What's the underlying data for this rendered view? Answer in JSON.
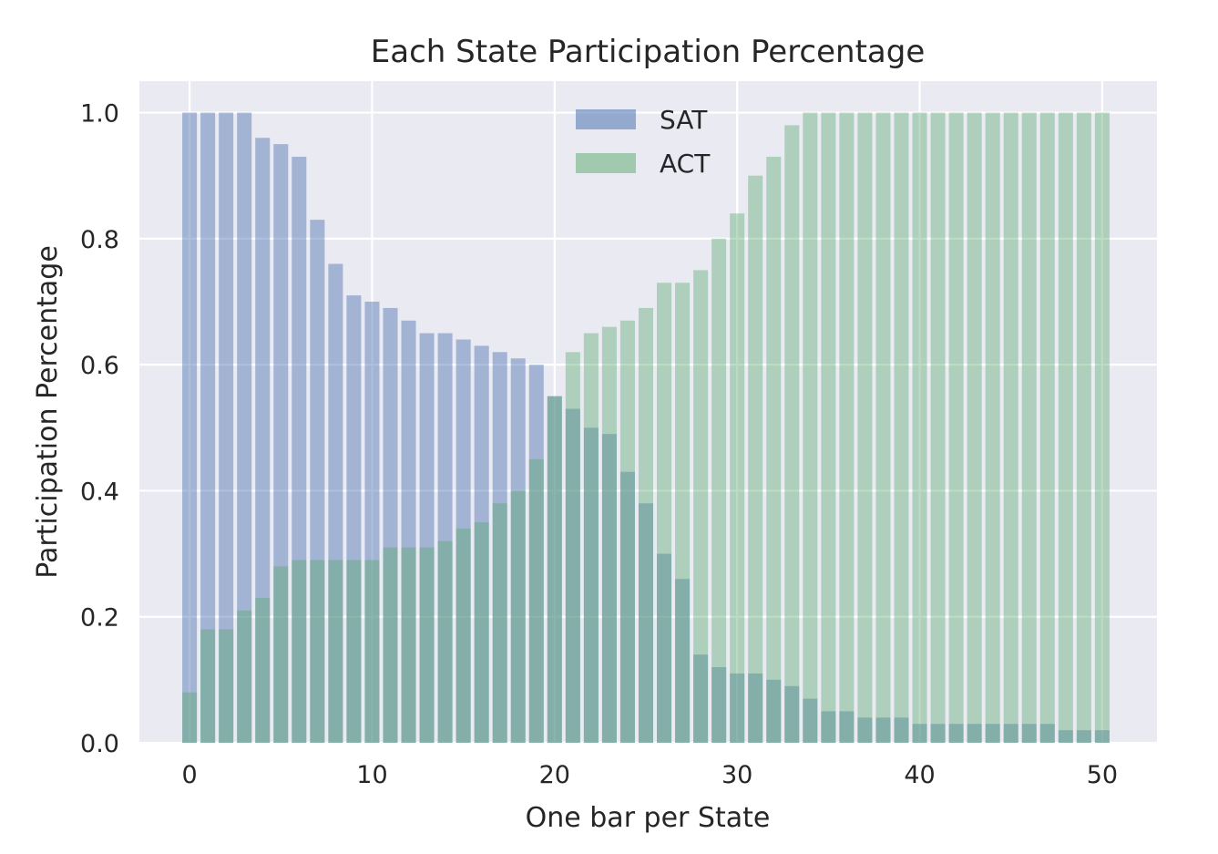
{
  "chart_data": {
    "type": "bar",
    "title": "Each State Participation Percentage",
    "xlabel": "One bar per State",
    "ylabel": "Participation Percentage",
    "xlim": [
      -2.75,
      53.0
    ],
    "ylim": [
      0.0,
      1.05
    ],
    "xticks": [
      0,
      10,
      20,
      30,
      40,
      50
    ],
    "xtick_labels": [
      "0",
      "10",
      "20",
      "30",
      "40",
      "50"
    ],
    "yticks": [
      0.0,
      0.2,
      0.4,
      0.6,
      0.8,
      1.0
    ],
    "ytick_labels": [
      "0.0",
      "0.2",
      "0.4",
      "0.6",
      "0.8",
      "1.0"
    ],
    "grid": true,
    "legend_position": "top-center",
    "bar_width": 0.8,
    "x": [
      0,
      1,
      2,
      3,
      4,
      5,
      6,
      7,
      8,
      9,
      10,
      11,
      12,
      13,
      14,
      15,
      16,
      17,
      18,
      19,
      20,
      21,
      22,
      23,
      24,
      25,
      26,
      27,
      28,
      29,
      30,
      31,
      32,
      33,
      34,
      35,
      36,
      37,
      38,
      39,
      40,
      41,
      42,
      43,
      44,
      45,
      46,
      47,
      48,
      49,
      50
    ],
    "series": [
      {
        "name": "SAT",
        "color": "#4c72b0",
        "opacity": 0.45,
        "values": [
          1.0,
          1.0,
          1.0,
          1.0,
          0.96,
          0.95,
          0.93,
          0.83,
          0.76,
          0.71,
          0.7,
          0.69,
          0.67,
          0.65,
          0.65,
          0.64,
          0.63,
          0.62,
          0.61,
          0.6,
          0.55,
          0.53,
          0.5,
          0.49,
          0.43,
          0.38,
          0.3,
          0.26,
          0.14,
          0.12,
          0.11,
          0.11,
          0.1,
          0.09,
          0.07,
          0.05,
          0.05,
          0.04,
          0.04,
          0.04,
          0.03,
          0.03,
          0.03,
          0.03,
          0.03,
          0.03,
          0.03,
          0.03,
          0.02,
          0.02,
          0.02
        ]
      },
      {
        "name": "ACT",
        "color": "#55a868",
        "opacity": 0.4,
        "values": [
          0.08,
          0.18,
          0.18,
          0.21,
          0.23,
          0.28,
          0.29,
          0.29,
          0.29,
          0.29,
          0.29,
          0.31,
          0.31,
          0.31,
          0.32,
          0.34,
          0.35,
          0.38,
          0.4,
          0.45,
          0.55,
          0.62,
          0.65,
          0.66,
          0.67,
          0.69,
          0.73,
          0.73,
          0.75,
          0.8,
          0.84,
          0.9,
          0.93,
          0.98,
          1.0,
          1.0,
          1.0,
          1.0,
          1.0,
          1.0,
          1.0,
          1.0,
          1.0,
          1.0,
          1.0,
          1.0,
          1.0,
          1.0,
          1.0,
          1.0,
          1.0
        ]
      }
    ],
    "style": {
      "plot_background": "#eaeaf2",
      "grid_color": "#ffffff",
      "text_color": "#262626"
    }
  }
}
